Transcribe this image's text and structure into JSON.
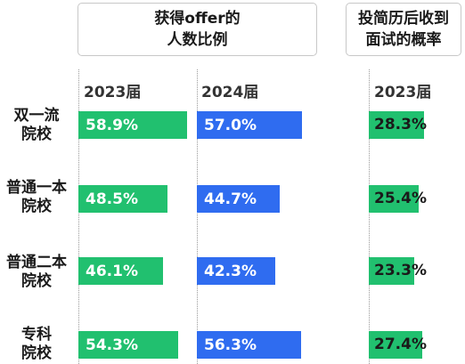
{
  "headers": {
    "offer": "获得offer的\n人数比例",
    "rate": "投简历后收到\n面试的概率"
  },
  "columns": {
    "offer_2023": "2023届",
    "offer_2024": "2024届",
    "rate_2023": "2023届"
  },
  "chart_data": {
    "type": "bar",
    "categories": [
      "双一流\n院校",
      "普通一本\n院校",
      "普通二本\n院校",
      "专科\n院校"
    ],
    "series": [
      {
        "name": "2023届",
        "values": [
          58.9,
          48.5,
          46.1,
          54.3
        ],
        "labels": [
          "58.9%",
          "48.5%",
          "46.1%",
          "54.3%"
        ],
        "color": "#21c06f"
      },
      {
        "name": "2024届",
        "values": [
          57.0,
          44.7,
          42.3,
          56.3
        ],
        "labels": [
          "57.0%",
          "44.7%",
          "42.3%",
          "56.3%"
        ],
        "color": "#2f6cf0"
      }
    ],
    "rate_series": {
      "name": "2023届",
      "values": [
        28.3,
        25.4,
        23.3,
        27.4
      ],
      "labels": [
        "28.3%",
        "25.4%",
        "23.3%",
        "27.4%"
      ],
      "color": "#21c06f"
    }
  }
}
